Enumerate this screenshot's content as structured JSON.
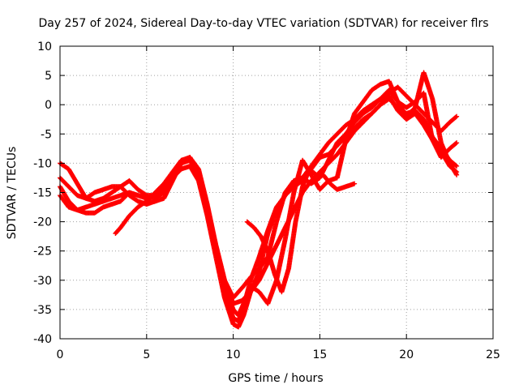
{
  "chart_data": {
    "type": "scatter",
    "title": "Day 257 of 2024, Sidereal Day-to-day VTEC variation (SDTVAR) for receiver flrs",
    "xlabel": "GPS time / hours",
    "ylabel": "SDTVAR / TECUs",
    "xlim": [
      0,
      25
    ],
    "ylim": [
      -40,
      10
    ],
    "xticks": [
      0,
      5,
      10,
      15,
      20,
      25
    ],
    "yticks": [
      -40,
      -35,
      -30,
      -25,
      -20,
      -15,
      -10,
      -5,
      0,
      5,
      10
    ],
    "grid": true,
    "marker_color": "#ff0000",
    "series": [
      {
        "x": [
          0.0,
          0.5,
          1.0,
          1.5,
          2.0,
          2.5,
          3.0,
          3.5,
          4.0,
          4.5,
          5.0,
          5.5,
          6.0,
          6.5,
          7.0,
          7.5,
          8.0,
          8.5,
          9.0,
          9.5,
          10.0,
          10.3,
          10.6,
          11.0,
          11.5,
          12.0,
          12.5,
          13.0,
          13.5,
          14.0,
          14.5,
          15.0,
          15.5,
          16.0,
          16.5,
          17.0,
          17.5,
          18.0,
          18.5,
          19.0,
          19.5,
          20.0,
          20.5,
          21.0,
          21.5,
          22.0,
          22.5,
          22.9
        ],
        "y": [
          -10.0,
          -11.0,
          -13.5,
          -16.0,
          -15.0,
          -14.5,
          -14.0,
          -14.0,
          -15.5,
          -16.5,
          -17.0,
          -16.5,
          -16.0,
          -13.0,
          -10.0,
          -9.0,
          -11.0,
          -17.0,
          -24.0,
          -30.0,
          -33.0,
          -32.0,
          -31.0,
          -29.5,
          -28.0,
          -26.0,
          -20.0,
          -15.0,
          -13.0,
          -12.5,
          -13.5,
          -12.5,
          -9.5,
          -6.5,
          -5.0,
          -3.0,
          -1.5,
          -0.5,
          1.0,
          2.5,
          0.5,
          -0.5,
          0.5,
          2.0,
          -6.0,
          -9.0,
          -7.5,
          -6.5
        ]
      },
      {
        "x": [
          0.0,
          0.5,
          1.0,
          1.5,
          2.0,
          2.5,
          3.0,
          3.5,
          4.0,
          4.5,
          5.0,
          5.5,
          6.0,
          6.5,
          7.0,
          7.5,
          8.0,
          8.5,
          9.0,
          9.5,
          10.0,
          10.3,
          10.6,
          11.0,
          11.5,
          12.0,
          12.5,
          13.0,
          13.5,
          14.0,
          14.5,
          15.0,
          15.5,
          16.0,
          16.5,
          17.0,
          17.5,
          18.0,
          18.5,
          19.0,
          19.5,
          20.0,
          20.5,
          21.0,
          21.5,
          22.0,
          22.5,
          22.9
        ],
        "y": [
          -12.5,
          -14.0,
          -15.5,
          -16.0,
          -16.5,
          -16.0,
          -15.0,
          -14.0,
          -13.0,
          -14.5,
          -15.5,
          -15.5,
          -14.5,
          -12.5,
          -11.0,
          -10.5,
          -13.0,
          -19.0,
          -26.0,
          -33.0,
          -37.5,
          -38.0,
          -36.0,
          -32.0,
          -28.5,
          -22.0,
          -18.0,
          -15.5,
          -13.0,
          -12.5,
          -10.5,
          -8.5,
          -6.5,
          -5.0,
          -3.5,
          -2.5,
          -1.0,
          0.0,
          1.0,
          1.5,
          -1.0,
          -2.5,
          -1.5,
          -3.5,
          -6.0,
          -8.0,
          -10.5,
          -11.5
        ]
      },
      {
        "x": [
          0.0,
          0.5,
          1.0,
          1.5,
          2.0,
          2.5,
          3.0,
          3.5,
          4.0,
          4.5,
          5.0,
          5.5,
          6.0,
          6.5,
          7.0,
          7.5,
          8.0,
          8.5,
          9.0,
          9.5,
          10.0,
          10.3,
          10.6,
          11.0,
          11.5,
          12.0,
          12.5,
          13.0,
          13.5,
          14.0,
          14.5,
          15.0,
          15.5,
          16.0,
          16.5,
          17.0,
          17.5,
          18.0,
          18.5,
          19.0,
          19.5,
          20.0,
          20.5,
          21.0,
          21.5,
          22.0,
          22.5,
          22.9
        ],
        "y": [
          -14.0,
          -16.5,
          -18.0,
          -18.5,
          -18.5,
          -17.5,
          -17.0,
          -16.5,
          -15.0,
          -15.5,
          -16.0,
          -16.0,
          -15.0,
          -12.0,
          -10.0,
          -9.0,
          -12.5,
          -18.5,
          -25.0,
          -31.0,
          -35.0,
          -36.0,
          -34.0,
          -31.0,
          -32.0,
          -34.0,
          -30.0,
          -23.0,
          -15.0,
          -9.5,
          -12.0,
          -14.5,
          -13.0,
          -12.5,
          -6.0,
          -1.5,
          0.5,
          2.5,
          3.5,
          4.0,
          0.5,
          -2.0,
          -0.5,
          5.5,
          1.0,
          -6.5,
          -10.0,
          -12.0
        ]
      },
      {
        "x": [
          0.0,
          0.5,
          1.0,
          1.5,
          2.0,
          2.5,
          3.0,
          3.5,
          4.0,
          4.5,
          5.0,
          5.5,
          6.0,
          6.5,
          7.0,
          7.5,
          8.0,
          8.5,
          9.0,
          9.5,
          10.0,
          10.3,
          10.6,
          11.0,
          11.5,
          12.0,
          12.5,
          13.0,
          13.5,
          14.0,
          14.5,
          15.0,
          15.5,
          16.0,
          16.5,
          17.0,
          17.5,
          18.0,
          18.5,
          19.0,
          19.5,
          20.0,
          20.5,
          21.0,
          21.5,
          22.0,
          22.5,
          22.9
        ],
        "y": [
          -15.5,
          -17.5,
          -18.0,
          -17.5,
          -17.0,
          -16.5,
          -16.0,
          -15.5,
          -15.0,
          -15.5,
          -16.0,
          -15.5,
          -14.0,
          -11.5,
          -9.5,
          -9.0,
          -11.5,
          -17.5,
          -24.5,
          -31.5,
          -36.5,
          -37.0,
          -34.5,
          -30.0,
          -26.0,
          -21.5,
          -17.5,
          -15.5,
          -14.0,
          -13.0,
          -11.0,
          -9.0,
          -8.5,
          -7.0,
          -5.5,
          -4.0,
          -2.5,
          -1.5,
          0.0,
          1.0,
          -0.5,
          -1.5,
          -1.0,
          -2.5,
          -5.5,
          -7.5,
          -9.5,
          -10.5
        ]
      },
      {
        "x": [
          3.2,
          3.5,
          4.0,
          4.5,
          5.0,
          5.5,
          6.0,
          6.5,
          7.0,
          7.5,
          8.0,
          8.5,
          9.0,
          9.5,
          10.0,
          10.5,
          11.0,
          11.5,
          12.0,
          12.5,
          13.0,
          13.5,
          14.0,
          14.5,
          15.0,
          15.5,
          16.0,
          16.5,
          17.0,
          17.5,
          18.0,
          18.5,
          19.0,
          19.5,
          20.0,
          20.5,
          21.0,
          21.5,
          22.0,
          22.5,
          22.9
        ],
        "y": [
          -22.0,
          -21.0,
          -19.0,
          -17.5,
          -16.5,
          -15.0,
          -13.5,
          -11.5,
          -10.0,
          -9.5,
          -12.0,
          -18.0,
          -24.0,
          -30.0,
          -34.0,
          -33.5,
          -32.0,
          -30.0,
          -27.0,
          -24.0,
          -21.0,
          -18.0,
          -15.0,
          -13.0,
          -11.5,
          -10.0,
          -8.5,
          -6.5,
          -4.5,
          -3.0,
          -1.5,
          0.0,
          2.0,
          3.0,
          1.5,
          0.0,
          -1.5,
          -3.0,
          -4.5,
          -3.0,
          -2.0
        ]
      },
      {
        "x": [
          10.8,
          11.2,
          11.6,
          12.0,
          12.4,
          12.8,
          13.2,
          13.6,
          14.0,
          14.4,
          14.8,
          15.2,
          15.6,
          16.0,
          16.5,
          17.0
        ],
        "y": [
          -20.0,
          -21.0,
          -22.5,
          -25.0,
          -29.0,
          -32.0,
          -28.0,
          -20.0,
          -14.0,
          -11.0,
          -12.0,
          -12.0,
          -13.5,
          -14.5,
          -14.0,
          -13.5
        ]
      }
    ]
  }
}
